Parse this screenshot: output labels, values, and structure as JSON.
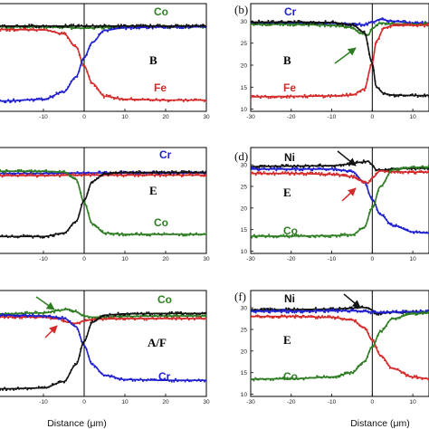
{
  "figure": {
    "colors": {
      "Co": "#2e7d22",
      "Cr": "#1f1fcf",
      "Fe": "#d42a2a",
      "Ni": "#111111",
      "B": "#000000"
    }
  },
  "chart_data": [
    {
      "id": "a",
      "type": "scatter",
      "panel_letter": "",
      "phase": "B",
      "xlabel": "",
      "ylabel": "",
      "xlim": [
        -22,
        30
      ],
      "ylim": [
        10,
        35
      ],
      "xticks": [
        -10,
        0,
        10,
        20,
        30
      ],
      "yticks": [],
      "interface_x": 0,
      "labels": [
        {
          "text": "Co",
          "series": "Co"
        },
        {
          "text": "Fe",
          "series": "Fe"
        }
      ],
      "series": [
        {
          "name": "Co",
          "color": "#2e7d22",
          "x": [
            -20,
            -10,
            -5,
            0,
            5,
            10,
            20,
            30
          ],
          "y": [
            29.6,
            29.6,
            29.5,
            29.3,
            29.5,
            29.6,
            29.6,
            29.6
          ]
        },
        {
          "name": "Fe",
          "color": "#d42a2a",
          "x": [
            -20,
            -10,
            -5,
            -2,
            0,
            2,
            5,
            10,
            20,
            30
          ],
          "y": [
            29.0,
            28.9,
            28.0,
            25.0,
            20.5,
            16.5,
            13.5,
            12.8,
            12.6,
            12.6
          ]
        },
        {
          "name": "",
          "color": "#1f1fcf",
          "x": [
            -20,
            -10,
            -5,
            -2,
            0,
            2,
            5,
            10,
            20,
            30
          ],
          "y": [
            12.4,
            12.8,
            14.5,
            18.0,
            22.5,
            26.0,
            28.8,
            29.4,
            29.6,
            29.6
          ]
        },
        {
          "name": "",
          "color": "#111111",
          "x": [
            -20,
            -10,
            0,
            10,
            20,
            30
          ],
          "y": [
            29.8,
            29.8,
            29.8,
            29.8,
            29.8,
            29.8
          ]
        }
      ]
    },
    {
      "id": "b",
      "type": "scatter",
      "panel_letter": "(b)",
      "phase": "B",
      "xlabel": "",
      "ylabel": "",
      "xlim": [
        -30,
        14
      ],
      "ylim": [
        9.5,
        34
      ],
      "xticks": [
        -30,
        -20,
        -10,
        0,
        10
      ],
      "yticks": [
        10,
        15,
        20,
        25,
        30
      ],
      "interface_x": 0,
      "labels": [
        {
          "text": "Cr",
          "series": "Cr"
        },
        {
          "text": "Fe",
          "series": "Fe"
        }
      ],
      "series": [
        {
          "name": "Cr",
          "color": "#1f1fcf",
          "x": [
            -30,
            -20,
            -10,
            -5,
            -2,
            0,
            2,
            5,
            10,
            14
          ],
          "y": [
            29.6,
            29.6,
            29.5,
            29.4,
            29.2,
            29.8,
            30.4,
            30.0,
            29.6,
            29.6
          ]
        },
        {
          "name": "",
          "color": "#2e7d22",
          "x": [
            -30,
            -20,
            -10,
            -5,
            -3,
            -1,
            0,
            2,
            5,
            10,
            14
          ],
          "y": [
            29.3,
            29.3,
            29.1,
            28.6,
            27.3,
            26.8,
            28.4,
            29.6,
            29.4,
            29.3,
            29.3
          ]
        },
        {
          "name": "Fe",
          "color": "#d42a2a",
          "x": [
            -30,
            -20,
            -10,
            -5,
            -2,
            0,
            1,
            3,
            5,
            10,
            14
          ],
          "y": [
            12.8,
            12.9,
            13.0,
            13.2,
            14.5,
            20.5,
            25.5,
            28.5,
            29.0,
            29.1,
            29.1
          ]
        },
        {
          "name": "",
          "color": "#111111",
          "x": [
            -30,
            -20,
            -10,
            -5,
            -2,
            0,
            1,
            3,
            5,
            10,
            14
          ],
          "y": [
            29.8,
            29.8,
            29.7,
            29.2,
            27.5,
            20.5,
            15.0,
            13.5,
            13.2,
            13.1,
            13.1
          ]
        }
      ]
    },
    {
      "id": "c",
      "type": "scatter",
      "panel_letter": "",
      "phase": "E",
      "xlabel": "",
      "ylabel": "",
      "xlim": [
        -22,
        30
      ],
      "ylim": [
        10,
        35
      ],
      "xticks": [
        -10,
        0,
        10,
        20,
        30
      ],
      "yticks": [],
      "interface_x": 0,
      "labels": [
        {
          "text": "Cr",
          "series": "Cr"
        },
        {
          "text": "Co",
          "series": "Co"
        }
      ],
      "series": [
        {
          "name": "Cr",
          "color": "#1f1fcf",
          "x": [
            -20,
            -10,
            0,
            10,
            20,
            30
          ],
          "y": [
            28.9,
            28.9,
            29.0,
            29.0,
            29.0,
            29.0
          ]
        },
        {
          "name": "",
          "color": "#d42a2a",
          "x": [
            -20,
            -10,
            0,
            10,
            20,
            30
          ],
          "y": [
            28.4,
            28.4,
            28.5,
            28.5,
            28.5,
            28.5
          ]
        },
        {
          "name": "Co",
          "color": "#2e7d22",
          "x": [
            -20,
            -10,
            -5,
            -2,
            0,
            2,
            5,
            10,
            20,
            30
          ],
          "y": [
            29.4,
            29.4,
            29.2,
            27.5,
            22.0,
            17.0,
            14.8,
            14.5,
            14.5,
            14.5
          ]
        },
        {
          "name": "",
          "color": "#111111",
          "x": [
            -20,
            -10,
            -5,
            -2,
            0,
            2,
            5,
            10,
            20,
            30
          ],
          "y": [
            14.0,
            14.0,
            14.8,
            17.5,
            22.5,
            27.0,
            28.8,
            29.1,
            29.1,
            29.1
          ]
        }
      ]
    },
    {
      "id": "d",
      "type": "scatter",
      "panel_letter": "(d)",
      "phase": "E",
      "xlabel": "",
      "ylabel": "",
      "xlim": [
        -30,
        14
      ],
      "ylim": [
        9.5,
        34
      ],
      "xticks": [
        -30,
        -20,
        -10,
        0,
        10
      ],
      "yticks": [
        10,
        15,
        20,
        25,
        30
      ],
      "interface_x": 0,
      "labels": [
        {
          "text": "Ni",
          "series": "Ni"
        },
        {
          "text": "Co",
          "series": "Co"
        }
      ],
      "series": [
        {
          "name": "Ni",
          "color": "#111111",
          "x": [
            -30,
            -20,
            -10,
            -5,
            -3,
            -1,
            0,
            1,
            3,
            5,
            10,
            14
          ],
          "y": [
            29.6,
            29.7,
            29.8,
            30.2,
            30.6,
            30.8,
            30.0,
            28.8,
            28.8,
            29.1,
            29.2,
            29.2
          ]
        },
        {
          "name": "",
          "color": "#1f1fcf",
          "x": [
            -30,
            -20,
            -10,
            -5,
            -2,
            0,
            2,
            5,
            10,
            14
          ],
          "y": [
            29.0,
            29.0,
            29.0,
            28.5,
            26.0,
            22.0,
            18.5,
            16.0,
            14.5,
            14.2
          ]
        },
        {
          "name": "",
          "color": "#d42a2a",
          "x": [
            -30,
            -20,
            -10,
            -5,
            -3,
            -1,
            0,
            2,
            5,
            10,
            14
          ],
          "y": [
            28.0,
            28.0,
            27.8,
            27.3,
            26.4,
            25.8,
            27.0,
            28.6,
            28.4,
            28.3,
            28.3
          ]
        },
        {
          "name": "Co",
          "color": "#2e7d22",
          "x": [
            -30,
            -20,
            -10,
            -5,
            -2,
            0,
            2,
            5,
            10,
            14
          ],
          "y": [
            13.5,
            13.5,
            13.6,
            13.8,
            15.5,
            20.0,
            25.0,
            28.8,
            29.4,
            29.5
          ]
        }
      ]
    },
    {
      "id": "e",
      "type": "scatter",
      "panel_letter": "",
      "phase": "A/F",
      "xlabel": "Distance (μm)",
      "ylabel": "",
      "xlim": [
        -22,
        30
      ],
      "ylim": [
        10,
        35
      ],
      "xticks": [
        -10,
        0,
        10,
        20,
        30
      ],
      "yticks": [],
      "interface_x": 0,
      "labels": [
        {
          "text": "Co",
          "series": "Co"
        },
        {
          "text": "Cr",
          "series": "Cr"
        }
      ],
      "series": [
        {
          "name": "Co",
          "color": "#2e7d22",
          "x": [
            -20,
            -10,
            -6,
            -4,
            -2,
            0,
            2,
            5,
            10,
            20,
            30
          ],
          "y": [
            29.5,
            29.7,
            30.3,
            30.6,
            30.0,
            29.0,
            28.7,
            28.8,
            28.9,
            29.0,
            29.0
          ]
        },
        {
          "name": "",
          "color": "#d42a2a",
          "x": [
            -20,
            -10,
            -6,
            -4,
            -2,
            0,
            2,
            5,
            10,
            20,
            30
          ],
          "y": [
            28.8,
            28.7,
            28.3,
            27.5,
            27.2,
            27.8,
            28.2,
            28.3,
            28.4,
            28.4,
            28.4
          ]
        },
        {
          "name": "Cr",
          "color": "#1f1fcf",
          "x": [
            -20,
            -10,
            -5,
            -2,
            0,
            2,
            5,
            10,
            20,
            30
          ],
          "y": [
            29.2,
            29.0,
            28.5,
            26.5,
            22.0,
            17.5,
            15.0,
            14.0,
            13.8,
            13.8
          ]
        },
        {
          "name": "",
          "color": "#111111",
          "x": [
            -20,
            -10,
            -5,
            -2,
            0,
            2,
            5,
            10,
            20,
            30
          ],
          "y": [
            11.8,
            12.0,
            13.5,
            17.5,
            23.0,
            27.5,
            29.2,
            29.5,
            29.6,
            29.6
          ]
        }
      ]
    },
    {
      "id": "f",
      "type": "scatter",
      "panel_letter": "(f)",
      "phase": "E",
      "xlabel": "Distance (μm)",
      "ylabel": "",
      "xlim": [
        -30,
        14
      ],
      "ylim": [
        9.5,
        34
      ],
      "xticks": [
        -30,
        -20,
        -10,
        0,
        10
      ],
      "yticks": [
        10,
        15,
        20,
        25,
        30
      ],
      "interface_x": 0,
      "labels": [
        {
          "text": "Ni",
          "series": "Ni"
        },
        {
          "text": "Co",
          "series": "Co"
        }
      ],
      "series": [
        {
          "name": "Ni",
          "color": "#111111",
          "x": [
            -30,
            -20,
            -10,
            -5,
            -3,
            -1,
            0,
            1,
            3,
            5,
            10,
            14
          ],
          "y": [
            29.5,
            29.6,
            29.7,
            29.9,
            30.1,
            30.0,
            29.4,
            28.6,
            28.8,
            29.0,
            29.1,
            29.1
          ]
        },
        {
          "name": "",
          "color": "#1f1fcf",
          "x": [
            -30,
            -20,
            -10,
            -5,
            -2,
            0,
            2,
            5,
            10,
            14
          ],
          "y": [
            29.2,
            29.2,
            29.3,
            29.3,
            29.2,
            29.0,
            28.9,
            29.0,
            29.1,
            29.1
          ]
        },
        {
          "name": "",
          "color": "#d42a2a",
          "x": [
            -30,
            -20,
            -10,
            -5,
            -2,
            0,
            2,
            5,
            10,
            14
          ],
          "y": [
            28.0,
            28.0,
            27.8,
            27.2,
            25.5,
            22.5,
            19.0,
            16.0,
            14.0,
            13.6
          ]
        },
        {
          "name": "Co",
          "color": "#2e7d22",
          "x": [
            -30,
            -20,
            -10,
            -5,
            -2,
            0,
            2,
            5,
            10,
            14
          ],
          "y": [
            13.5,
            13.6,
            14.0,
            15.0,
            17.5,
            21.0,
            24.5,
            27.5,
            28.6,
            28.8
          ]
        }
      ]
    }
  ]
}
